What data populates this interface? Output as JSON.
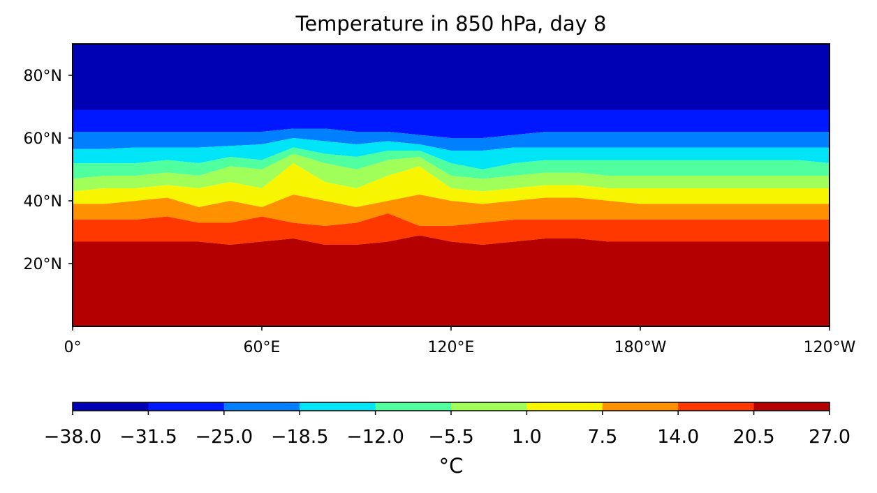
{
  "chart_data": {
    "type": "heatmap",
    "title": "Temperature in 850 hPa, day 8",
    "x_ticks": [
      "0°",
      "60°E",
      "120°E",
      "180°W",
      "120°W"
    ],
    "x_range_deg_east": [
      0,
      240
    ],
    "y_ticks": [
      "20°N",
      "40°N",
      "60°N",
      "80°N"
    ],
    "y_range_deg_north": [
      0,
      90
    ],
    "colorbar": {
      "label": "°C",
      "levels": [
        -38.0,
        -31.5,
        -25.0,
        -18.5,
        -12.0,
        -5.5,
        1.0,
        7.5,
        14.0,
        20.5,
        27.0
      ],
      "tick_labels": [
        "−38.0",
        "−31.5",
        "−25.0",
        "−18.5",
        "−12.0",
        "−5.5",
        "1.0",
        "7.5",
        "14.0",
        "20.5",
        "27.0"
      ],
      "colors": [
        "#0000b4",
        "#0018ff",
        "#0080ff",
        "#00e4f8",
        "#50ff9e",
        "#a0ff58",
        "#f8f500",
        "#ff9000",
        "#ff3800",
        "#b40000"
      ]
    },
    "contours": {
      "lon": [
        0,
        10,
        20,
        30,
        40,
        50,
        60,
        70,
        80,
        90,
        100,
        110,
        120,
        130,
        140,
        150,
        160,
        170,
        180,
        190,
        200,
        210,
        220,
        230,
        240
      ],
      "boundaries_lat": [
        [
          69,
          69,
          69,
          69,
          69,
          69,
          69,
          69,
          69,
          69,
          69,
          69,
          69,
          69,
          69,
          69,
          69,
          69,
          69,
          69,
          69,
          69,
          69,
          69,
          69
        ],
        [
          62,
          62,
          62,
          62,
          62,
          62,
          62,
          63,
          63,
          62,
          62,
          61,
          60,
          60,
          61,
          62,
          62,
          62,
          62,
          62,
          62,
          62,
          62,
          62,
          62
        ],
        [
          56.5,
          56.5,
          57,
          57,
          57,
          57.5,
          58,
          60,
          59,
          58,
          59,
          58,
          56,
          56,
          57,
          57,
          57,
          57,
          57,
          57,
          57,
          57,
          57,
          57,
          57
        ],
        [
          52,
          52,
          52,
          53,
          52,
          54,
          53,
          57,
          55,
          54,
          56,
          56,
          52,
          50,
          52,
          53,
          53,
          53,
          53,
          53,
          53,
          53,
          53,
          53,
          52
        ],
        [
          47,
          48,
          48,
          49,
          48,
          51,
          50,
          55,
          52,
          50,
          53,
          54,
          48,
          47,
          48,
          49,
          49,
          48,
          48,
          48,
          48,
          48,
          48,
          48,
          48
        ],
        [
          43,
          44,
          44,
          45,
          44,
          46,
          44,
          52,
          46,
          44,
          48,
          51,
          44,
          43,
          44,
          45,
          45,
          44,
          44,
          44,
          44,
          44,
          44,
          44,
          44
        ],
        [
          39,
          39,
          40,
          41,
          38,
          40,
          38,
          42,
          40,
          38,
          40,
          42,
          40,
          39,
          40,
          41,
          41,
          40,
          39,
          39,
          39,
          39,
          39,
          39,
          39
        ],
        [
          34,
          34,
          34,
          35,
          33,
          33,
          35,
          33,
          32,
          33,
          36,
          32,
          32,
          33,
          34,
          34,
          34,
          34,
          34,
          34,
          34,
          34,
          34,
          34,
          34
        ],
        [
          27,
          27,
          27,
          27,
          27,
          26,
          27,
          28,
          26,
          26,
          27,
          29,
          27,
          26,
          27,
          28,
          28,
          27,
          27,
          27,
          27,
          27,
          27,
          27,
          27
        ]
      ]
    }
  }
}
